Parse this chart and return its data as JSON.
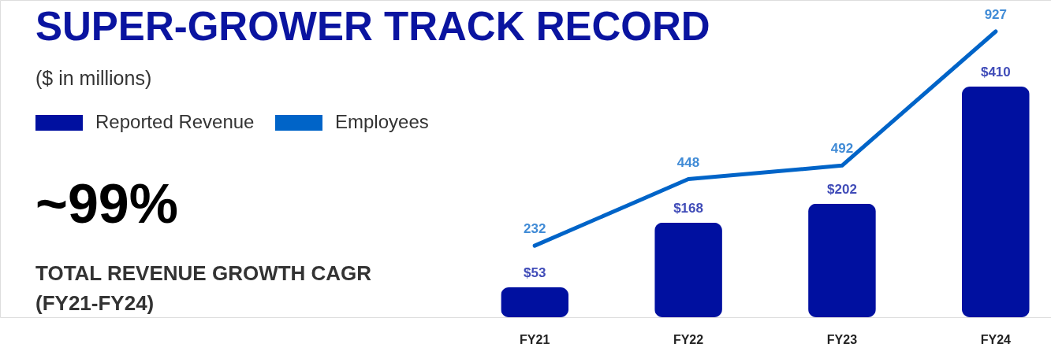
{
  "chart_data": {
    "type": "bar",
    "title": "SUPER-GROWER TRACK RECORD",
    "subtitle": "($ in millions)",
    "categories": [
      "FY21",
      "FY22",
      "FY23",
      "FY24"
    ],
    "series": [
      {
        "name": "Reported Revenue",
        "color": "#0010a0",
        "values": [
          53,
          168,
          202,
          410
        ],
        "value_labels": [
          "$53",
          "$168",
          "$202",
          "$410"
        ]
      },
      {
        "name": "Employees",
        "type": "line",
        "axis": "y2",
        "color": "#0064c8",
        "values": [
          232,
          448,
          492,
          927
        ],
        "value_labels": [
          "232",
          "448",
          "492",
          "927"
        ]
      }
    ],
    "annotations": [
      "~99%",
      "TOTAL REVENUE GROWTH CAGR\n(FY21-FY24)"
    ],
    "legend": "top left"
  }
}
